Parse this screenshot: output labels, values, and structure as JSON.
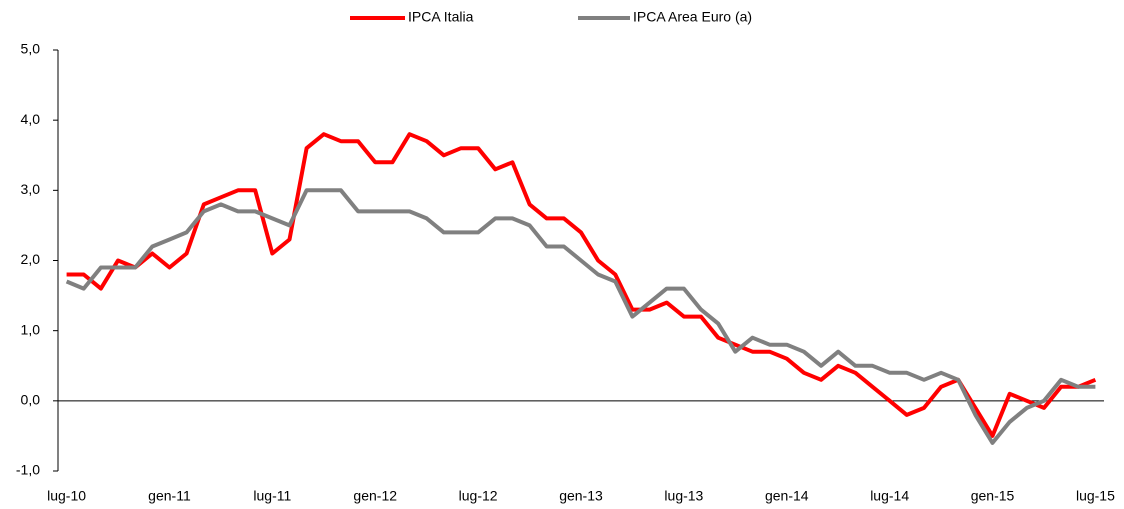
{
  "chart_data": {
    "type": "line",
    "categories": [
      "lug-10",
      null,
      null,
      null,
      null,
      null,
      "gen-11",
      null,
      null,
      null,
      null,
      null,
      "lug-11",
      null,
      null,
      null,
      null,
      null,
      "gen-12",
      null,
      null,
      null,
      null,
      null,
      "lug-12",
      null,
      null,
      null,
      null,
      null,
      "gen-13",
      null,
      null,
      null,
      null,
      null,
      "lug-13",
      null,
      null,
      null,
      null,
      null,
      "gen-14",
      null,
      null,
      null,
      null,
      null,
      "lug-14",
      null,
      null,
      null,
      null,
      null,
      "gen-15",
      null,
      null,
      null,
      null,
      null,
      "lug-15"
    ],
    "series": [
      {
        "name": "IPCA Italia",
        "color": "#ff0000",
        "values": [
          1.8,
          1.8,
          1.6,
          2.0,
          1.9,
          2.1,
          1.9,
          2.1,
          2.8,
          2.9,
          3.0,
          3.0,
          2.1,
          2.3,
          3.6,
          3.8,
          3.7,
          3.7,
          3.4,
          3.4,
          3.8,
          3.7,
          3.5,
          3.6,
          3.6,
          3.3,
          3.4,
          2.8,
          2.6,
          2.6,
          2.4,
          2.0,
          1.8,
          1.3,
          1.3,
          1.4,
          1.2,
          1.2,
          0.9,
          0.8,
          0.7,
          0.7,
          0.6,
          0.4,
          0.3,
          0.5,
          0.4,
          0.2,
          0.0,
          -0.2,
          -0.1,
          0.2,
          0.3,
          -0.1,
          -0.5,
          0.1,
          0.0,
          -0.1,
          0.2,
          0.2,
          0.3
        ]
      },
      {
        "name": "IPCA Area Euro (a)",
        "color": "#808080",
        "values": [
          1.7,
          1.6,
          1.9,
          1.9,
          1.9,
          2.2,
          2.3,
          2.4,
          2.7,
          2.8,
          2.7,
          2.7,
          2.6,
          2.5,
          3.0,
          3.0,
          3.0,
          2.7,
          2.7,
          2.7,
          2.7,
          2.6,
          2.4,
          2.4,
          2.4,
          2.6,
          2.6,
          2.5,
          2.2,
          2.2,
          2.0,
          1.8,
          1.7,
          1.2,
          1.4,
          1.6,
          1.6,
          1.3,
          1.1,
          0.7,
          0.9,
          0.8,
          0.8,
          0.7,
          0.5,
          0.7,
          0.5,
          0.5,
          0.4,
          0.4,
          0.3,
          0.4,
          0.3,
          -0.2,
          -0.6,
          -0.3,
          -0.1,
          0.0,
          0.3,
          0.2,
          0.2
        ]
      }
    ],
    "ylim": [
      -1,
      5
    ],
    "yticks": [
      {
        "value": -1,
        "label": "-1,0"
      },
      {
        "value": 0,
        "label": "0,0"
      },
      {
        "value": 1,
        "label": "1,0"
      },
      {
        "value": 2,
        "label": "2,0"
      },
      {
        "value": 3,
        "label": "3,0"
      },
      {
        "value": 4,
        "label": "4,0"
      },
      {
        "value": 5,
        "label": "5,0"
      }
    ],
    "grid": false,
    "legend": "top"
  }
}
